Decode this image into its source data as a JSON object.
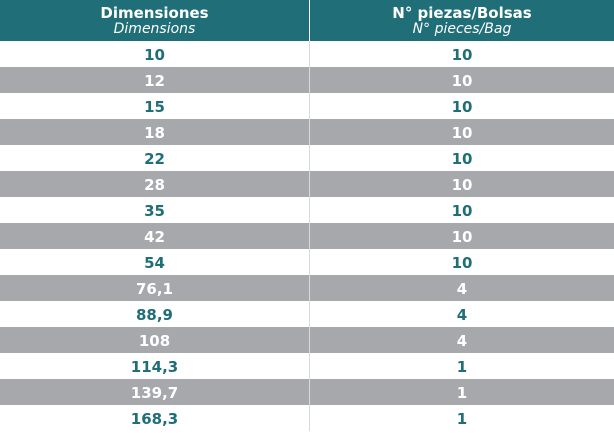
{
  "table": {
    "header": [
      {
        "title": "Dimensiones",
        "subtitle": "Dimensions"
      },
      {
        "title": "N° piezas/Bolsas",
        "subtitle": "N° pieces/Bag"
      }
    ],
    "rows": [
      [
        "10",
        "10"
      ],
      [
        "12",
        "10"
      ],
      [
        "15",
        "10"
      ],
      [
        "18",
        "10"
      ],
      [
        "22",
        "10"
      ],
      [
        "28",
        "10"
      ],
      [
        "35",
        "10"
      ],
      [
        "42",
        "10"
      ],
      [
        "54",
        "10"
      ],
      [
        "76,1",
        "4"
      ],
      [
        "88,9",
        "4"
      ],
      [
        "108",
        "4"
      ],
      [
        "114,3",
        "1"
      ],
      [
        "139,7",
        "1"
      ],
      [
        "168,3",
        "1"
      ]
    ]
  }
}
